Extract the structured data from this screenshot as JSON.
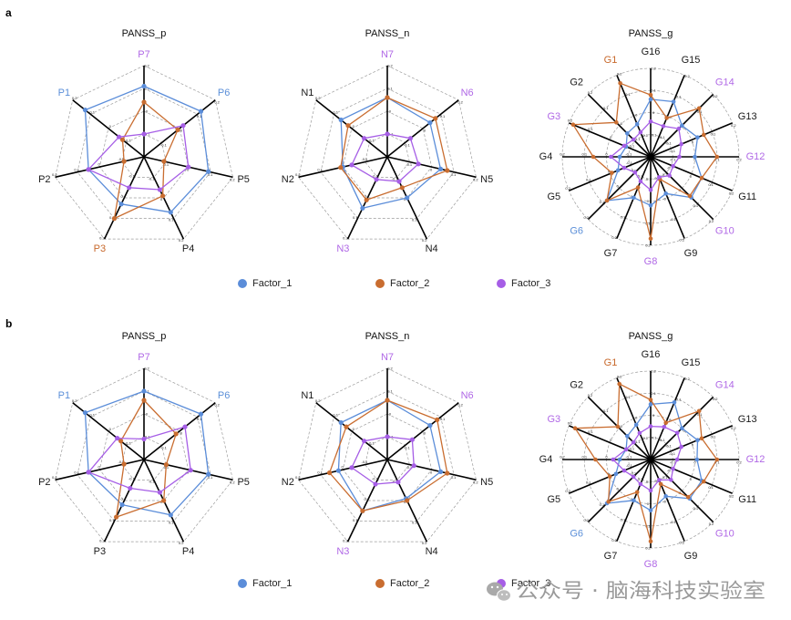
{
  "panels": [
    {
      "label": "a"
    },
    {
      "label": "b"
    }
  ],
  "legend": {
    "items": [
      {
        "label": "Factor_1",
        "color": "#5b8dd9"
      },
      {
        "label": "Factor_2",
        "color": "#c96d30"
      },
      {
        "label": "Factor_3",
        "color": "#a65ee6"
      }
    ]
  },
  "watermark": {
    "text": "公众号 · 脑海科技实验室",
    "icon": "wechat-icon",
    "color": "#9a9a9a"
  },
  "chart_data": [
    {
      "type": "radar",
      "title": "PANSS_p",
      "axes": [
        "P7",
        "P6",
        "P5",
        "P4",
        "P3",
        "P2",
        "P1"
      ],
      "axis_colors": [
        "#b068e6",
        "#5b8fd8",
        "#1a1a1a",
        "#1a1a1a",
        "#c8692c",
        "#1a1a1a",
        "#5b8fd8"
      ],
      "rlim": [
        -0.2,
        0.2
      ],
      "ticks": [
        -0.1,
        0,
        0.1,
        0.2
      ],
      "tick_labels": [
        "-0.1",
        "0",
        "0.1",
        "0.2"
      ],
      "grid": true,
      "series": [
        {
          "name": "Factor_1",
          "color": "#5b8dd9",
          "values": [
            0.11,
            0.12,
            0.09,
            0.07,
            0.03,
            0.05,
            0.13
          ]
        },
        {
          "name": "Factor_2",
          "color": "#c96d30",
          "values": [
            0.04,
            -0.01,
            -0.11,
            -0.01,
            0.1,
            -0.11,
            -0.08
          ]
        },
        {
          "name": "Factor_3",
          "color": "#a65ee6",
          "values": [
            -0.1,
            0.02,
            0.0,
            -0.04,
            -0.05,
            0.05,
            -0.06
          ]
        }
      ]
    },
    {
      "type": "radar",
      "title": "PANSS_n",
      "axes": [
        "N7",
        "N6",
        "N5",
        "N4",
        "N3",
        "N2",
        "N1"
      ],
      "axis_colors": [
        "#b068e6",
        "#b068e6",
        "#1a1a1a",
        "#1a1a1a",
        "#b068e6",
        "#1a1a1a",
        "#1a1a1a"
      ],
      "rlim": [
        -0.2,
        0.2
      ],
      "ticks": [
        -0.1,
        0,
        0.1,
        0.2
      ],
      "tick_labels": [
        "-0.1",
        "0",
        "0.1",
        "0.2"
      ],
      "grid": true,
      "series": [
        {
          "name": "Factor_1",
          "color": "#5b8dd9",
          "values": [
            0.06,
            0.04,
            0.04,
            0.0,
            0.05,
            0.0,
            0.06
          ]
        },
        {
          "name": "Factor_2",
          "color": "#c96d30",
          "values": [
            0.06,
            0.07,
            0.07,
            -0.05,
            0.01,
            0.01,
            0.02
          ]
        },
        {
          "name": "Factor_3",
          "color": "#a65ee6",
          "values": [
            -0.1,
            -0.07,
            -0.06,
            -0.08,
            -0.09,
            -0.04,
            -0.07
          ]
        }
      ]
    },
    {
      "type": "radar",
      "title": "PANSS_g",
      "axes": [
        "G16",
        "G15",
        "G14",
        "G13",
        "G12",
        "G11",
        "G10",
        "G9",
        "G8",
        "G7",
        "G6",
        "G5",
        "G4",
        "G3",
        "G2",
        "G1"
      ],
      "axis_colors": [
        "#1a1a1a",
        "#1a1a1a",
        "#b068e6",
        "#1a1a1a",
        "#b068e6",
        "#1a1a1a",
        "#b068e6",
        "#1a1a1a",
        "#b068e6",
        "#1a1a1a",
        "#5b8fd8",
        "#1a1a1a",
        "#1a1a1a",
        "#b068e6",
        "#1a1a1a",
        "#c8692c"
      ],
      "rlim": [
        -0.2,
        0.2
      ],
      "ticks": [
        -0.1,
        0,
        0.1,
        0.2
      ],
      "tick_labels": [
        "-0.1",
        "0",
        "0.1",
        "0.2"
      ],
      "grid": true,
      "series": [
        {
          "name": "Factor_1",
          "color": "#5b8dd9",
          "values": [
            0.06,
            0.07,
            0.0,
            0.03,
            0.0,
            0.05,
            0.06,
            -0.02,
            0.02,
            0.0,
            0.08,
            -0.04,
            -0.06,
            -0.08,
            -0.05,
            -0.04
          ]
        },
        {
          "name": "Factor_2",
          "color": "#c96d30",
          "values": [
            0.08,
            -0.01,
            0.11,
            0.06,
            0.1,
            0.05,
            0.05,
            -0.09,
            0.17,
            -0.05,
            0.08,
            -0.01,
            0.06,
            0.18,
            0.02,
            0.16
          ]
        },
        {
          "name": "Factor_3",
          "color": "#a65ee6",
          "values": [
            -0.04,
            -0.05,
            -0.02,
            -0.05,
            -0.07,
            -0.09,
            -0.08,
            -0.1,
            -0.05,
            -0.08,
            -0.1,
            -0.07,
            -0.02,
            -0.07,
            -0.09,
            -0.08
          ]
        }
      ]
    },
    {
      "type": "radar",
      "title": "PANSS_p",
      "axes": [
        "P7",
        "P6",
        "P5",
        "P4",
        "P3",
        "P2",
        "P1"
      ],
      "axis_colors": [
        "#b068e6",
        "#5b8fd8",
        "#1a1a1a",
        "#1a1a1a",
        "#1a1a1a",
        "#1a1a1a",
        "#5b8fd8"
      ],
      "rlim": [
        -0.2,
        0.2
      ],
      "ticks": [
        -0.1,
        0,
        0.1,
        0.2
      ],
      "tick_labels": [
        "-0.1",
        "0",
        "0.1",
        "0.2"
      ],
      "grid": true,
      "series": [
        {
          "name": "Factor_1",
          "color": "#5b8dd9",
          "values": [
            0.1,
            0.12,
            0.09,
            0.07,
            0.02,
            0.05,
            0.13
          ]
        },
        {
          "name": "Factor_2",
          "color": "#c96d30",
          "values": [
            0.06,
            -0.02,
            -0.1,
            0.0,
            0.08,
            -0.11,
            -0.07
          ]
        },
        {
          "name": "Factor_3",
          "color": "#a65ee6",
          "values": [
            -0.11,
            0.03,
            0.01,
            -0.04,
            -0.06,
            0.05,
            -0.05
          ]
        }
      ]
    },
    {
      "type": "radar",
      "title": "PANSS_n",
      "axes": [
        "N7",
        "N6",
        "N5",
        "N4",
        "N3",
        "N2",
        "N1"
      ],
      "axis_colors": [
        "#b068e6",
        "#b068e6",
        "#1a1a1a",
        "#1a1a1a",
        "#b068e6",
        "#1a1a1a",
        "#1a1a1a"
      ],
      "rlim": [
        -0.2,
        0.2
      ],
      "ticks": [
        -0.1,
        0,
        0.1,
        0.2
      ],
      "tick_labels": [
        "-0.1",
        "0",
        "0.1",
        "0.2"
      ],
      "grid": true,
      "series": [
        {
          "name": "Factor_1",
          "color": "#5b8dd9",
          "values": [
            0.06,
            0.04,
            0.04,
            -0.01,
            0.05,
            0.02,
            0.06
          ]
        },
        {
          "name": "Factor_2",
          "color": "#c96d30",
          "values": [
            0.06,
            0.08,
            0.07,
            0.0,
            0.05,
            0.06,
            0.03
          ]
        },
        {
          "name": "Factor_3",
          "color": "#a65ee6",
          "values": [
            -0.1,
            -0.06,
            -0.08,
            -0.09,
            -0.08,
            -0.04,
            -0.07
          ]
        }
      ]
    },
    {
      "type": "radar",
      "title": "PANSS_g",
      "axes": [
        "G16",
        "G15",
        "G14",
        "G13",
        "G12",
        "G11",
        "G10",
        "G9",
        "G8",
        "G7",
        "G6",
        "G5",
        "G4",
        "G3",
        "G2",
        "G1"
      ],
      "axis_colors": [
        "#1a1a1a",
        "#1a1a1a",
        "#b068e6",
        "#1a1a1a",
        "#b068e6",
        "#1a1a1a",
        "#b068e6",
        "#1a1a1a",
        "#b068e6",
        "#1a1a1a",
        "#5b8fd8",
        "#1a1a1a",
        "#1a1a1a",
        "#b068e6",
        "#1a1a1a",
        "#c8692c"
      ],
      "rlim": [
        -0.2,
        0.2
      ],
      "ticks": [
        -0.1,
        0,
        0.1,
        0.2
      ],
      "tick_labels": [
        "-0.1",
        "0",
        "0.1",
        "0.2"
      ],
      "grid": true,
      "series": [
        {
          "name": "Factor_1",
          "color": "#5b8dd9",
          "values": [
            0.05,
            0.08,
            0.0,
            0.03,
            0.01,
            0.05,
            0.05,
            -0.02,
            0.03,
            0.0,
            0.08,
            -0.03,
            -0.06,
            -0.08,
            -0.05,
            -0.03
          ]
        },
        {
          "name": "Factor_2",
          "color": "#c96d30",
          "values": [
            0.07,
            -0.02,
            0.11,
            0.05,
            0.1,
            0.06,
            0.04,
            -0.08,
            0.17,
            -0.04,
            0.07,
            0.0,
            0.05,
            0.17,
            0.01,
            0.17
          ]
        },
        {
          "name": "Factor_3",
          "color": "#a65ee6",
          "values": [
            -0.05,
            -0.04,
            -0.03,
            -0.05,
            -0.08,
            -0.09,
            -0.07,
            -0.1,
            -0.06,
            -0.08,
            -0.09,
            -0.07,
            -0.03,
            -0.08,
            -0.09,
            -0.07
          ]
        }
      ]
    }
  ]
}
